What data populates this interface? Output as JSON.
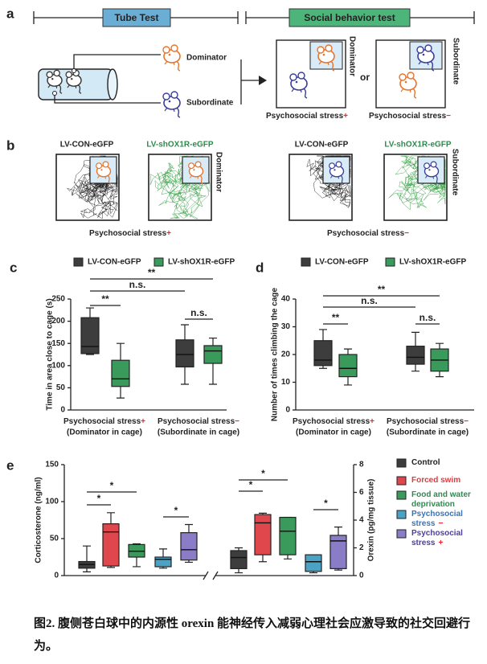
{
  "panel_a": {
    "label": "a",
    "tube_test": "Tube Test",
    "social_test": "Social behavior test",
    "dominator": "Dominator",
    "subordinate": "Subordinate",
    "or": "or",
    "stress": "Psychosocial stress",
    "plus": "+",
    "minus": "−"
  },
  "panel_b": {
    "label": "b",
    "control": "LV-CON-eGFP",
    "knockdown": "LV-shOX1R-eGFP"
  },
  "chart_data": [
    {
      "panel_label": "c",
      "type": "box",
      "ylabel": "Time in area close to cage (s)",
      "categories": [
        "Psychosocial stress",
        "Psychosocial stress"
      ],
      "category_signs": [
        "+",
        "−"
      ],
      "category_notes": [
        "(Dominator in cage)",
        "(Subordinate in cage)"
      ],
      "ylim": [
        0,
        250
      ],
      "yticks": [
        0,
        50,
        100,
        150,
        200,
        250
      ],
      "series": [
        {
          "name": "LV-CON-eGFP",
          "color": "#3d3d3d",
          "label_color": "#222222",
          "min": [
            125,
            58
          ],
          "q1": [
            127,
            97
          ],
          "median": [
            143,
            125
          ],
          "q3": [
            208,
            158
          ],
          "max": [
            230,
            192
          ]
        },
        {
          "name": "LV-shOX1R-eGFP",
          "color": "#3a9a5b",
          "label_color": "#2e8b4e",
          "min": [
            27,
            58
          ],
          "q1": [
            53,
            105
          ],
          "median": [
            70,
            133
          ],
          "q3": [
            112,
            145
          ],
          "max": [
            150,
            162
          ]
        }
      ],
      "annotations": [
        "**",
        "n.s.",
        "**",
        "n.s."
      ]
    },
    {
      "panel_label": "d",
      "type": "box",
      "ylabel": "Number of times climbing the cage",
      "categories": [
        "Psychosocial stress",
        "Psychosocial stress"
      ],
      "category_signs": [
        "+",
        "−"
      ],
      "category_notes": [
        "(Dominator in cage)",
        "(Subordinate in cage)"
      ],
      "ylim": [
        0,
        40
      ],
      "yticks": [
        0,
        10,
        20,
        30,
        40
      ],
      "series": [
        {
          "name": "LV-CON-eGFP",
          "color": "#3d3d3d",
          "label_color": "#222222",
          "min": [
            15,
            14
          ],
          "q1": [
            16,
            16.5
          ],
          "median": [
            18,
            19
          ],
          "q3": [
            25,
            23
          ],
          "max": [
            29,
            28
          ]
        },
        {
          "name": "LV-shOX1R-eGFP",
          "color": "#3a9a5b",
          "label_color": "#2e8b4e",
          "min": [
            9,
            12
          ],
          "q1": [
            12,
            14
          ],
          "median": [
            15,
            18
          ],
          "q3": [
            20,
            22
          ],
          "max": [
            22,
            24
          ]
        }
      ],
      "annotations": [
        "**",
        "n.s.",
        "**",
        "n.s."
      ]
    },
    {
      "panel_label": "e",
      "type": "box",
      "ylabel": "Corticosterone (ng/ml)",
      "y2label": "Orexin (pg/mg tissue)",
      "ylim": [
        0,
        150
      ],
      "yticks": [
        0,
        50,
        100,
        150
      ],
      "y2lim": [
        0,
        8
      ],
      "y2ticks": [
        0,
        2,
        4,
        6,
        8
      ],
      "series": [
        {
          "name": "Control",
          "color": "#3d3d3d",
          "label_color": "#222222",
          "min": [
            5,
            0.2
          ],
          "q1": [
            10,
            0.5
          ],
          "median": [
            15,
            1.3
          ],
          "q3": [
            19,
            1.8
          ],
          "max": [
            40,
            2.0
          ]
        },
        {
          "name": "Forced swim",
          "color": "#e0474c",
          "label_color": "#e0393e",
          "min": [
            11,
            1.0
          ],
          "q1": [
            13,
            1.5
          ],
          "median": [
            59,
            3.8
          ],
          "q3": [
            70,
            4.4
          ],
          "max": [
            85,
            4.5
          ]
        },
        {
          "name": "Food and water deprivation",
          "color": "#3a9a5b",
          "label_color": "#2e8b4e",
          "min": [
            12,
            1.2
          ],
          "q1": [
            25,
            1.5
          ],
          "median": [
            33,
            3.2
          ],
          "q3": [
            42,
            4.2
          ],
          "max": [
            43,
            4.2
          ]
        },
        {
          "name": "Psychosocial stress",
          "sign": "−",
          "color": "#4aa3c4",
          "label_color": "#3a72b8",
          "min": [
            10,
            0.2
          ],
          "q1": [
            12,
            0.3
          ],
          "median": [
            22,
            1.0
          ],
          "q3": [
            25,
            1.5
          ],
          "max": [
            36,
            1.5
          ]
        },
        {
          "name": "Psychosocial stress",
          "sign": "+",
          "color": "#8b7cc8",
          "label_color": "#4b3ea0",
          "min": [
            18,
            0.4
          ],
          "q1": [
            21,
            0.5
          ],
          "median": [
            35,
            2.5
          ],
          "q3": [
            58,
            2.9
          ],
          "max": [
            69,
            3.5
          ]
        }
      ],
      "annotations": [
        "*",
        "*",
        "*",
        "*",
        "*",
        "*"
      ]
    }
  ],
  "caption": "图2. 腹侧苍白球中的内源性 orexin 能神经传入减弱心理社会应激导致的社交回避行为。"
}
